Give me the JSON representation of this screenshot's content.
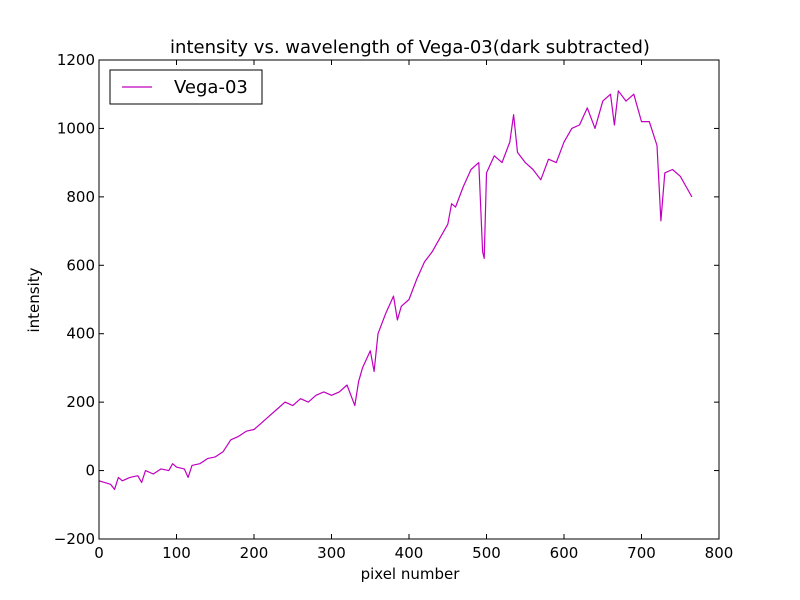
{
  "chart_data": {
    "type": "line",
    "title": "intensity vs. wavelength of Vega-03(dark subtracted)",
    "xlabel": "pixel number",
    "ylabel": "intensity",
    "xlim": [
      0,
      800
    ],
    "ylim": [
      -200,
      1200
    ],
    "xticks": [
      0,
      100,
      200,
      300,
      400,
      500,
      600,
      700,
      800
    ],
    "yticks": [
      -200,
      0,
      200,
      400,
      600,
      800,
      1000,
      1200
    ],
    "grid": false,
    "legend_position": "top-left",
    "series": [
      {
        "name": "Vega-03",
        "color": "#bf00bf",
        "x": [
          0,
          15,
          20,
          25,
          30,
          40,
          50,
          55,
          60,
          70,
          80,
          90,
          95,
          100,
          110,
          115,
          120,
          130,
          140,
          150,
          160,
          170,
          180,
          190,
          200,
          210,
          220,
          230,
          240,
          250,
          260,
          270,
          280,
          290,
          300,
          310,
          320,
          330,
          335,
          340,
          350,
          355,
          360,
          370,
          380,
          385,
          390,
          400,
          410,
          420,
          430,
          440,
          450,
          455,
          460,
          470,
          480,
          490,
          495,
          497,
          500,
          510,
          520,
          530,
          535,
          540,
          550,
          560,
          570,
          580,
          590,
          600,
          610,
          620,
          630,
          640,
          650,
          660,
          665,
          670,
          680,
          690,
          700,
          710,
          720,
          725,
          730,
          740,
          750,
          760,
          765
        ],
        "y": [
          -30,
          -40,
          -55,
          -20,
          -30,
          -20,
          -15,
          -35,
          0,
          -10,
          5,
          0,
          20,
          10,
          5,
          -20,
          15,
          20,
          35,
          40,
          55,
          90,
          100,
          115,
          120,
          140,
          160,
          180,
          200,
          190,
          210,
          200,
          220,
          230,
          220,
          230,
          250,
          190,
          260,
          300,
          350,
          290,
          400,
          460,
          510,
          440,
          480,
          500,
          560,
          610,
          640,
          680,
          720,
          780,
          770,
          830,
          880,
          900,
          640,
          620,
          870,
          920,
          900,
          960,
          1040,
          930,
          900,
          880,
          850,
          910,
          900,
          960,
          1000,
          1010,
          1060,
          1000,
          1080,
          1100,
          1010,
          1110,
          1080,
          1100,
          1020,
          1020,
          950,
          730,
          870,
          880,
          860,
          820,
          800
        ]
      }
    ]
  }
}
